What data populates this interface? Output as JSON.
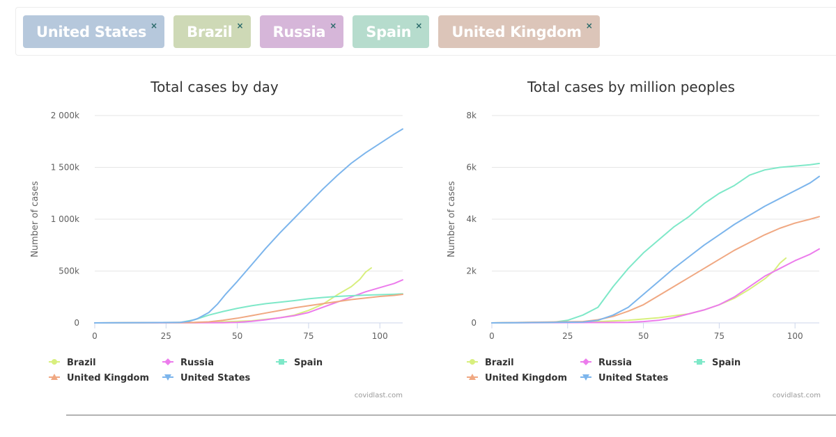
{
  "tags": [
    {
      "label": "United States",
      "color": "#b6c8dc"
    },
    {
      "label": "Brazil",
      "color": "#ced9b6"
    },
    {
      "label": "Russia",
      "color": "#d6b6d9"
    },
    {
      "label": "Spain",
      "color": "#b6dccd"
    },
    {
      "label": "United Kingdom",
      "color": "#dcc5b9"
    }
  ],
  "close_symbol": "×",
  "series_colors": {
    "Brazil": "#d8ef7e",
    "Russia": "#ec7cec",
    "Spain": "#7ee8c8",
    "United Kingdom": "#f0a882",
    "United States": "#7cb5ec"
  },
  "series_markers": {
    "Brazil": "circle",
    "Russia": "diamond",
    "Spain": "square",
    "United Kingdom": "triangle",
    "United States": "triangle-down"
  },
  "legend_order": [
    "Brazil",
    "Russia",
    "Spain",
    "United Kingdom",
    "United States"
  ],
  "credit": "covidlast.com",
  "chart_data": [
    {
      "type": "line",
      "title": "Total cases by day",
      "xlabel": "",
      "ylabel": "Number of cases",
      "xlim": [
        0,
        108
      ],
      "ylim": [
        0,
        2000000
      ],
      "x_ticks": [
        0,
        25,
        50,
        75,
        100
      ],
      "y_ticks": [
        0,
        500000,
        1000000,
        1500000,
        2000000
      ],
      "y_tick_labels": [
        "0",
        "500k",
        "1 000k",
        "1 500k",
        "2 000k"
      ],
      "grid": true,
      "legend_position": "bottom",
      "series": [
        {
          "name": "Brazil",
          "x": [
            0,
            35,
            45,
            55,
            65,
            70,
            75,
            80,
            85,
            90,
            93,
            95,
            97
          ],
          "values": [
            0,
            1000,
            10000,
            20000,
            50000,
            75000,
            120000,
            180000,
            270000,
            350000,
            420000,
            490000,
            530000
          ]
        },
        {
          "name": "Russia",
          "x": [
            0,
            45,
            50,
            55,
            60,
            65,
            70,
            75,
            80,
            85,
            90,
            95,
            100,
            105,
            108
          ],
          "values": [
            0,
            2000,
            5000,
            15000,
            30000,
            50000,
            70000,
            100000,
            150000,
            200000,
            250000,
            300000,
            340000,
            380000,
            415000
          ]
        },
        {
          "name": "Spain",
          "x": [
            0,
            30,
            35,
            40,
            45,
            50,
            55,
            60,
            65,
            70,
            75,
            80,
            85,
            90,
            95,
            100,
            105,
            108
          ],
          "values": [
            0,
            5000,
            30000,
            75000,
            110000,
            140000,
            165000,
            185000,
            200000,
            215000,
            232000,
            245000,
            255000,
            262000,
            268000,
            272000,
            276000,
            280000
          ]
        },
        {
          "name": "United Kingdom",
          "x": [
            0,
            35,
            40,
            45,
            50,
            55,
            60,
            65,
            70,
            75,
            80,
            85,
            90,
            95,
            100,
            105,
            108
          ],
          "values": [
            0,
            5000,
            10000,
            25000,
            45000,
            70000,
            95000,
            120000,
            145000,
            165000,
            185000,
            205000,
            225000,
            240000,
            255000,
            265000,
            275000
          ]
        },
        {
          "name": "United States",
          "x": [
            0,
            30,
            33,
            36,
            40,
            43,
            46,
            50,
            55,
            60,
            65,
            70,
            75,
            80,
            85,
            90,
            95,
            100,
            105,
            108
          ],
          "values": [
            0,
            5000,
            15000,
            40000,
            100000,
            180000,
            280000,
            400000,
            560000,
            720000,
            870000,
            1010000,
            1150000,
            1290000,
            1420000,
            1540000,
            1640000,
            1730000,
            1820000,
            1870000
          ]
        }
      ]
    },
    {
      "type": "line",
      "title": "Total cases by million peoples",
      "xlabel": "",
      "ylabel": "Number of cases",
      "xlim": [
        0,
        108
      ],
      "ylim": [
        0,
        8000
      ],
      "x_ticks": [
        0,
        25,
        50,
        75,
        100
      ],
      "y_ticks": [
        0,
        2000,
        4000,
        6000,
        8000
      ],
      "y_tick_labels": [
        "0",
        "2k",
        "4k",
        "6k",
        "8k"
      ],
      "grid": true,
      "legend_position": "bottom",
      "series": [
        {
          "name": "Brazil",
          "x": [
            0,
            35,
            45,
            55,
            65,
            70,
            75,
            80,
            85,
            90,
            93,
            95,
            97
          ],
          "values": [
            0,
            50,
            100,
            200,
            350,
            500,
            700,
            950,
            1300,
            1700,
            2000,
            2300,
            2500
          ]
        },
        {
          "name": "Russia",
          "x": [
            0,
            45,
            50,
            55,
            60,
            65,
            70,
            75,
            80,
            85,
            90,
            95,
            100,
            105,
            108
          ],
          "values": [
            0,
            20,
            50,
            100,
            200,
            350,
            500,
            700,
            1000,
            1400,
            1800,
            2100,
            2400,
            2650,
            2850
          ]
        },
        {
          "name": "Spain",
          "x": [
            0,
            20,
            25,
            30,
            35,
            40,
            45,
            50,
            55,
            60,
            65,
            70,
            75,
            80,
            85,
            90,
            95,
            100,
            105,
            108
          ],
          "values": [
            0,
            20,
            100,
            300,
            600,
            1400,
            2100,
            2700,
            3200,
            3700,
            4100,
            4600,
            5000,
            5300,
            5700,
            5900,
            6000,
            6050,
            6100,
            6150
          ]
        },
        {
          "name": "United Kingdom",
          "x": [
            0,
            30,
            35,
            40,
            45,
            50,
            55,
            60,
            65,
            70,
            75,
            80,
            85,
            90,
            95,
            100,
            105,
            108
          ],
          "values": [
            0,
            50,
            120,
            250,
            450,
            700,
            1050,
            1400,
            1750,
            2100,
            2450,
            2800,
            3100,
            3400,
            3650,
            3850,
            4000,
            4100
          ]
        },
        {
          "name": "United States",
          "x": [
            0,
            30,
            35,
            40,
            45,
            50,
            55,
            60,
            65,
            70,
            75,
            80,
            85,
            90,
            95,
            100,
            105,
            108
          ],
          "values": [
            0,
            30,
            100,
            300,
            600,
            1100,
            1600,
            2100,
            2550,
            3000,
            3400,
            3800,
            4150,
            4500,
            4800,
            5100,
            5400,
            5650
          ]
        }
      ]
    }
  ]
}
